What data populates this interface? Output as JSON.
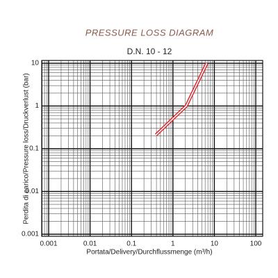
{
  "chart_data": {
    "type": "line",
    "title": "PRESSURE LOSS DIAGRAM",
    "subtitle": "D.N. 10 - 12",
    "x_label": "Portata/Delivery/Durchflussmenge (m³/h)",
    "y_label": "Perdita di carico/Pressure loss/Druckverlust (bar)",
    "x_scale": "log",
    "y_scale": "log",
    "grid": true,
    "minor_grid": true,
    "xlim": [
      0.001,
      100
    ],
    "xticks": [
      0.001,
      0.01,
      0.1,
      1,
      10,
      100
    ],
    "ylim": [
      0.001,
      10
    ],
    "yticks": [
      0.001,
      0.01,
      0.1,
      1,
      10
    ],
    "series": [
      {
        "color": "#d9262e",
        "x": [
          0.39,
          2.1,
          6.6
        ],
        "values": [
          0.21,
          1,
          10
        ]
      }
    ]
  }
}
